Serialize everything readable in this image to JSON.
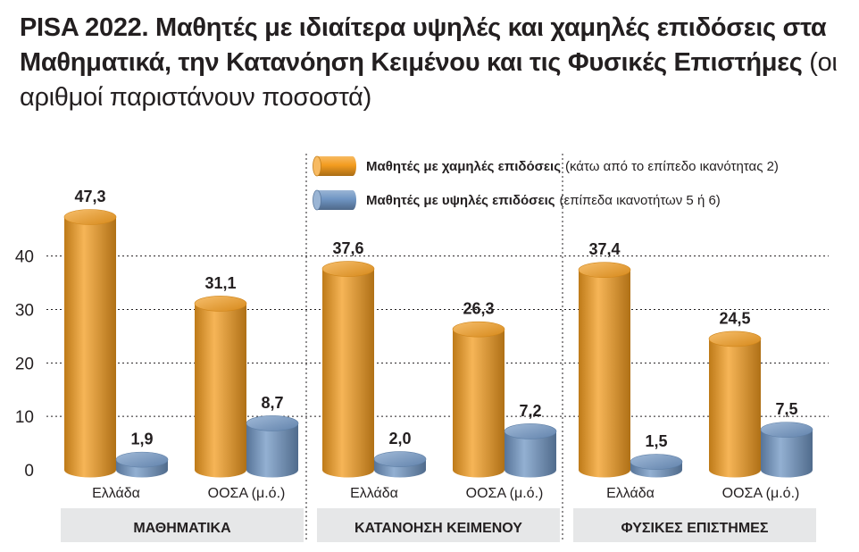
{
  "title": {
    "bold": "PISA 2022. Μαθητές με ιδιαίτερα υψηλές και χαμηλές επιδόσεις στα Μαθηματικά, την Κατανόηση Κειμένου και τις Φυσικές Επιστήμες",
    "note": "(οι αριθμοί παριστάνουν ποσοστά)"
  },
  "colors": {
    "low": "#f39c1f",
    "high": "#6f95c3",
    "panel": "#e6e7e8",
    "text": "#231f20"
  },
  "chart_data": {
    "type": "bar",
    "ylim": [
      0,
      47.3
    ],
    "yticks": [
      0,
      10,
      20,
      30,
      40
    ],
    "grid": true,
    "legend_position": "top-right",
    "groups": [
      {
        "label": "ΜΑΘΗΜΑΤΙΚΑ",
        "categories": [
          "Ελλάδα",
          "ΟΟΣΑ (μ.ό.)"
        ]
      },
      {
        "label": "ΚΑΤΑΝΟΗΣΗ ΚΕΙΜΕΝΟΥ",
        "categories": [
          "Ελλάδα",
          "ΟΟΣΑ (μ.ό.)"
        ]
      },
      {
        "label": "ΦΥΣΙΚΕΣ ΕΠΙΣΤΗΜΕΣ",
        "categories": [
          "Ελλάδα",
          "ΟΟΣΑ (μ.ό.)"
        ]
      }
    ],
    "series": [
      {
        "name": "Μαθητές με χαμηλές επιδόσεις",
        "note": "(κάτω από το επίπεδο ικανότητας 2)",
        "color": "#f39c1f",
        "values": [
          47.3,
          31.1,
          37.6,
          26.3,
          37.4,
          24.5
        ],
        "labels": [
          "47,3",
          "31,1",
          "37,6",
          "26,3",
          "37,4",
          "24,5"
        ]
      },
      {
        "name": "Μαθητές με υψηλές επιδόσεις",
        "note": "(επίπεδα ικανοτήτων 5 ή 6)",
        "color": "#6f95c3",
        "values": [
          1.9,
          8.7,
          2.0,
          7.2,
          1.5,
          7.5
        ],
        "labels": [
          "1,9",
          "8,7",
          "2,0",
          "7,2",
          "1,5",
          "7,5"
        ]
      }
    ]
  }
}
